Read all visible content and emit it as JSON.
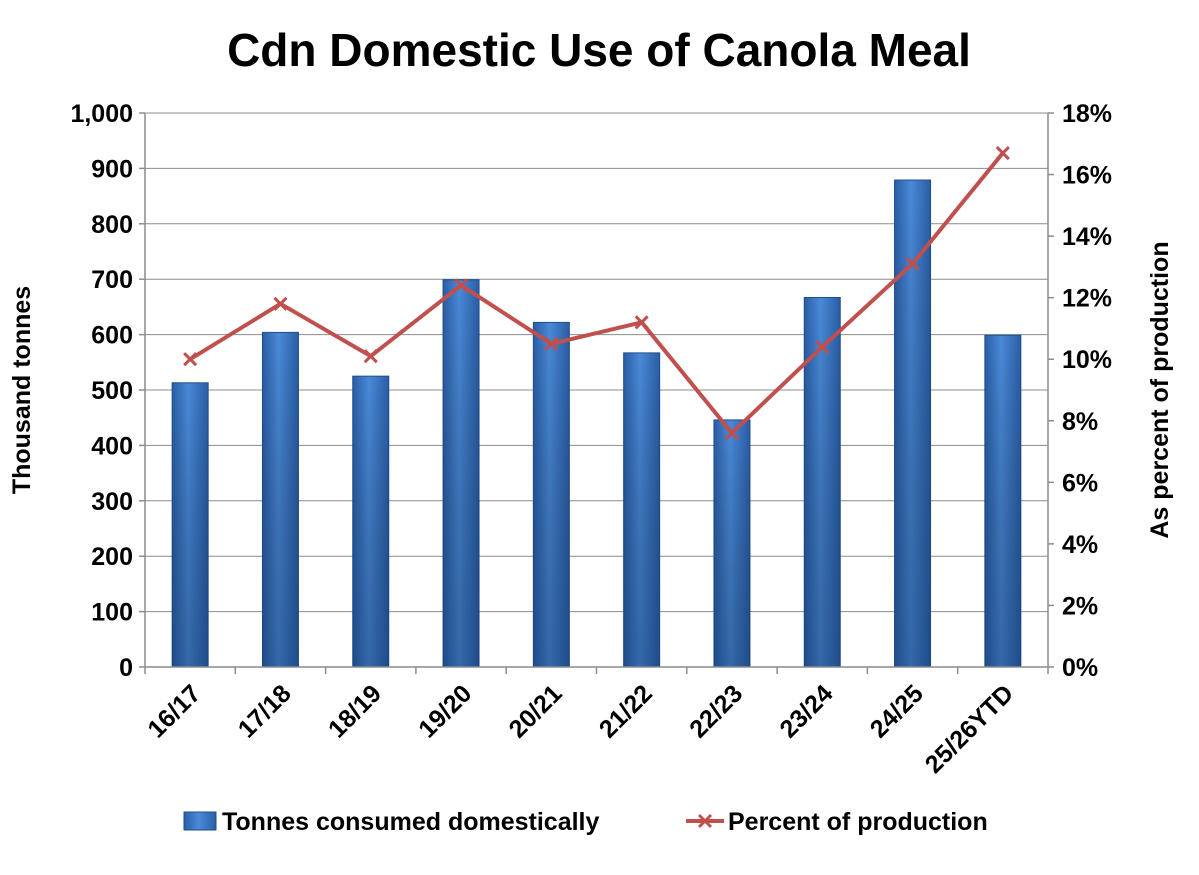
{
  "chart_data": {
    "type": "bar",
    "title": "Cdn Domestic Use of Canola Meal",
    "xlabel": "",
    "ylabel": "Thousand tonnes",
    "y2label": "As percent of production",
    "categories": [
      "16/17",
      "17/18",
      "18/19",
      "19/20",
      "20/21",
      "21/22",
      "22/23",
      "23/24",
      "24/25",
      "25/26YTD"
    ],
    "ylim": [
      0,
      1000
    ],
    "y_ticks": [
      0,
      100,
      200,
      300,
      400,
      500,
      600,
      700,
      800,
      900,
      1000
    ],
    "y_tick_labels": [
      "0",
      "100",
      "200",
      "300",
      "400",
      "500",
      "600",
      "700",
      "800",
      "900",
      "1,000"
    ],
    "y2lim": [
      0,
      18
    ],
    "y2_ticks": [
      0,
      2,
      4,
      6,
      8,
      10,
      12,
      14,
      16,
      18
    ],
    "y2_tick_labels": [
      "0%",
      "2%",
      "4%",
      "6%",
      "8%",
      "10%",
      "12%",
      "14%",
      "16%",
      "18%"
    ],
    "grid": true,
    "legend_position": "bottom",
    "series": [
      {
        "name": "Tonnes consumed domestically",
        "kind": "bar",
        "axis": "left",
        "color": "#3a78c9",
        "values": [
          513,
          604,
          525,
          699,
          622,
          567,
          446,
          667,
          879,
          599
        ]
      },
      {
        "name": "Percent of production",
        "kind": "line",
        "marker": "x",
        "axis": "right",
        "color": "#c0504d",
        "values": [
          10.0,
          11.8,
          10.1,
          12.4,
          10.5,
          11.2,
          7.6,
          10.4,
          13.1,
          16.7
        ]
      }
    ]
  }
}
